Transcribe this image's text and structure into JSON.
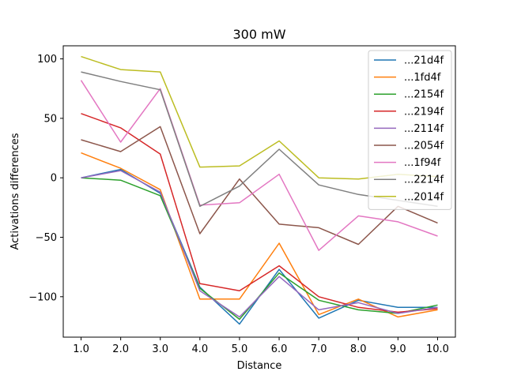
{
  "chart_data": {
    "type": "line",
    "title": "300 mW",
    "xlabel": "Distance",
    "ylabel": "Activations differences",
    "x": [
      1.0,
      2.0,
      3.0,
      4.0,
      5.0,
      6.0,
      7.0,
      8.0,
      9.0,
      10.0
    ],
    "x_tick_labels": [
      "1.0",
      "2.0",
      "3.0",
      "4.0",
      "5.0",
      "6.0",
      "7.0",
      "8.0",
      "9.0",
      "10.0"
    ],
    "xlim": [
      0.55,
      10.45
    ],
    "ylim": [
      -134,
      111
    ],
    "y_ticks": [
      100,
      50,
      0,
      -50,
      -100
    ],
    "y_tick_labels": [
      "100",
      "50",
      "0",
      "−50",
      "−100"
    ],
    "legend_position": "top-right",
    "grid": false,
    "series": [
      {
        "name": "...21d4f",
        "color": "#1f77b4",
        "values": [
          0,
          7,
          -13,
          -92,
          -123,
          -77,
          -118,
          -103,
          -109,
          -109
        ]
      },
      {
        "name": "...1fd4f",
        "color": "#ff7f0e",
        "values": [
          21,
          8,
          -10,
          -102,
          -102,
          -55,
          -115,
          -102,
          -117,
          -111
        ]
      },
      {
        "name": "...2154f",
        "color": "#2ca02c",
        "values": [
          0,
          -2,
          -15,
          -93,
          -119,
          -80,
          -103,
          -111,
          -114,
          -107
        ]
      },
      {
        "name": "...2194f",
        "color": "#d62728",
        "values": [
          54,
          42,
          20,
          -89,
          -95,
          -74,
          -100,
          -109,
          -113,
          -110
        ]
      },
      {
        "name": "...2114f",
        "color": "#9467bd",
        "values": [
          0,
          6,
          -12,
          -95,
          -117,
          -83,
          -111,
          -105,
          -114,
          -109
        ]
      },
      {
        "name": "...2054f",
        "color": "#8c564b",
        "values": [
          32,
          22,
          43,
          -47,
          -1,
          -39,
          -42,
          -56,
          -24,
          -38
        ]
      },
      {
        "name": "...1f94f",
        "color": "#e377c2",
        "values": [
          82,
          30,
          75,
          -23,
          -21,
          3,
          -61,
          -32,
          -37,
          -49
        ]
      },
      {
        "name": "...2214f",
        "color": "#7f7f7f",
        "values": [
          89,
          81,
          74,
          -24,
          -7,
          24,
          -6,
          -14,
          -19,
          -24
        ]
      },
      {
        "name": "...2014f",
        "color": "#bcbd22",
        "values": [
          102,
          91,
          89,
          9,
          10,
          31,
          0,
          -1,
          3,
          1
        ]
      }
    ]
  }
}
